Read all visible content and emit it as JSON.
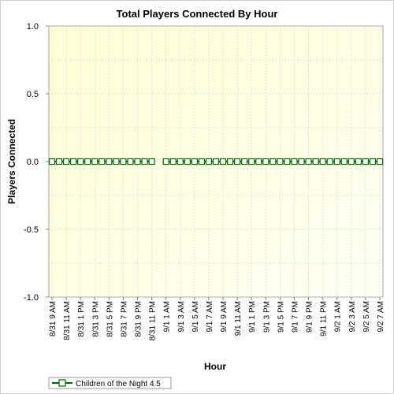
{
  "chart_data": {
    "type": "line",
    "title": "Total Players Connected By Hour",
    "xlabel": "Hour",
    "ylabel": "Players Connected",
    "ylim": [
      -1.0,
      1.0
    ],
    "yticks": [
      "1.0",
      "0.5",
      "0.0",
      "-0.5",
      "-1.0"
    ],
    "ytick_values": [
      1.0,
      0.5,
      0.0,
      -0.5,
      -1.0
    ],
    "grid": true,
    "legend_position": "bottom-left",
    "x": [
      "8/31 9 AM",
      "8/31 10 AM",
      "8/31 11 AM",
      "8/31 12 PM",
      "8/31 1 PM",
      "8/31 2 PM",
      "8/31 3 PM",
      "8/31 4 PM",
      "8/31 5 PM",
      "8/31 6 PM",
      "8/31 7 PM",
      "8/31 8 PM",
      "8/31 9 PM",
      "8/31 10 PM",
      "8/31 11 PM",
      "9/1 12 AM",
      "9/1 1 AM",
      "9/1 2 AM",
      "9/1 3 AM",
      "9/1 4 AM",
      "9/1 5 AM",
      "9/1 6 AM",
      "9/1 7 AM",
      "9/1 8 AM",
      "9/1 9 AM",
      "9/1 10 AM",
      "9/1 11 AM",
      "9/1 12 PM",
      "9/1 1 PM",
      "9/1 2 PM",
      "9/1 3 PM",
      "9/1 4 PM",
      "9/1 5 PM",
      "9/1 6 PM",
      "9/1 7 PM",
      "9/1 8 PM",
      "9/1 9 PM",
      "9/1 10 PM",
      "9/1 11 PM",
      "9/2 12 AM",
      "9/2 1 AM",
      "9/2 2 AM",
      "9/2 3 AM",
      "9/2 4 AM",
      "9/2 5 AM",
      "9/2 6 AM",
      "9/2 7 AM"
    ],
    "xtick_labels": [
      "8/31 9 AM",
      "8/31 11 AM",
      "8/31 1 PM",
      "8/31 3 PM",
      "8/31 5 PM",
      "8/31 7 PM",
      "8/31 9 PM",
      "8/31 11 PM",
      "9/1 1 AM",
      "9/1 3 AM",
      "9/1 5 AM",
      "9/1 7 AM",
      "9/1 9 AM",
      "9/1 11 AM",
      "9/1 1 PM",
      "9/1 3 PM",
      "9/1 5 PM",
      "9/1 7 PM",
      "9/1 9 PM",
      "9/1 11 PM",
      "9/2 1 AM",
      "9/2 3 AM",
      "9/2 5 AM",
      "9/2 7 AM"
    ],
    "series": [
      {
        "name": "Children of the Night 4.5",
        "color": "#006400",
        "marker": "square",
        "values": [
          0,
          0,
          0,
          0,
          0,
          0,
          0,
          0,
          0,
          0,
          0,
          0,
          0,
          0,
          0,
          null,
          0,
          0,
          0,
          0,
          0,
          0,
          0,
          0,
          0,
          0,
          0,
          0,
          0,
          0,
          0,
          0,
          0,
          0,
          0,
          0,
          0,
          0,
          0,
          0,
          0,
          0,
          0,
          0,
          0,
          0,
          0
        ]
      }
    ],
    "colors": {
      "plot_background": "#ffffe8",
      "grid": "#c8c8c8",
      "line": "#006400"
    }
  }
}
